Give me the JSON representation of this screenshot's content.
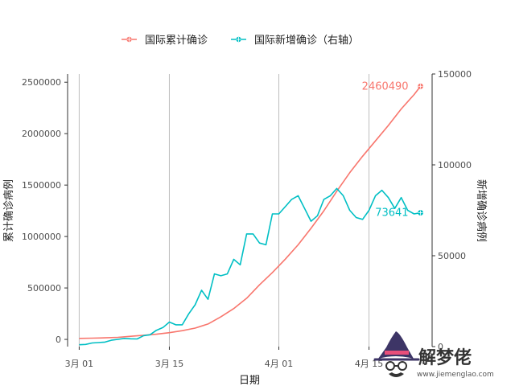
{
  "chart_data": {
    "type": "line",
    "xlabel": "日期",
    "ylabel_left": "累计确诊病例",
    "ylabel_right": "新增确诊病例",
    "x_ticks": [
      "3月 01",
      "3月 15",
      "4月 01",
      "4月 15"
    ],
    "x_tick_days": [
      0,
      14,
      31,
      45
    ],
    "y_left_ticks": [
      "0",
      "500000",
      "1000000",
      "1500000",
      "2000000",
      "2500000"
    ],
    "y_left_tick_values": [
      0,
      500000,
      1000000,
      1500000,
      2000000,
      2500000
    ],
    "y_right_ticks": [
      "0",
      "50000",
      "100000",
      "150000"
    ],
    "y_right_tick_values": [
      0,
      50000,
      100000,
      150000
    ],
    "ylim_left": [
      -70000,
      2580000
    ],
    "ylim_right": [
      0,
      150000
    ],
    "xlim_days": [
      -1.8,
      54.8
    ],
    "grid": "vertical",
    "legend_position": "top",
    "series": [
      {
        "name": "国际累计确诊",
        "axis": "left",
        "color": "#F8766D",
        "x": [
          0,
          2,
          4,
          6,
          8,
          10,
          12,
          14,
          16,
          18,
          20,
          22,
          24,
          26,
          28,
          30,
          32,
          34,
          36,
          38,
          40,
          42,
          44,
          46,
          48,
          50,
          52,
          53
        ],
        "y": [
          10000,
          12000,
          15000,
          20000,
          30000,
          40000,
          50000,
          65000,
          85000,
          110000,
          150000,
          220000,
          300000,
          400000,
          530000,
          650000,
          780000,
          920000,
          1080000,
          1250000,
          1440000,
          1620000,
          1780000,
          1930000,
          2080000,
          2240000,
          2380000,
          2460490
        ]
      },
      {
        "name": "国际新增确诊（右轴）",
        "axis": "right",
        "color": "#00BFC4",
        "x": [
          0,
          1,
          2,
          3,
          4,
          5,
          6,
          7,
          8,
          9,
          10,
          11,
          12,
          13,
          14,
          15,
          16,
          17,
          18,
          19,
          20,
          21,
          22,
          23,
          24,
          25,
          26,
          27,
          28,
          29,
          30,
          31,
          32,
          33,
          34,
          35,
          36,
          37,
          38,
          39,
          40,
          41,
          42,
          43,
          44,
          45,
          46,
          47,
          48,
          49,
          50,
          51,
          52,
          53
        ],
        "y": [
          1000,
          1200,
          2000,
          2200,
          2500,
          3500,
          4000,
          4500,
          4300,
          4200,
          6000,
          6500,
          9000,
          10500,
          13500,
          12000,
          12000,
          18000,
          23000,
          31000,
          26000,
          40000,
          39000,
          40000,
          48000,
          45000,
          62000,
          62000,
          57000,
          56000,
          73000,
          73000,
          77000,
          81000,
          83000,
          76000,
          69000,
          72000,
          81000,
          83000,
          87000,
          83000,
          75000,
          71000,
          70000,
          75000,
          83000,
          86000,
          82000,
          76000,
          82000,
          75000,
          73000,
          73641
        ]
      }
    ],
    "annotations": [
      {
        "series": 0,
        "text": "2460490",
        "value": 2460490
      },
      {
        "series": 1,
        "text": "73641",
        "value": 73641
      }
    ]
  },
  "watermark": {
    "text": "解梦佬",
    "url": "www.jiemenglao.com",
    "icon": "wizard-hat-glasses-logo"
  }
}
